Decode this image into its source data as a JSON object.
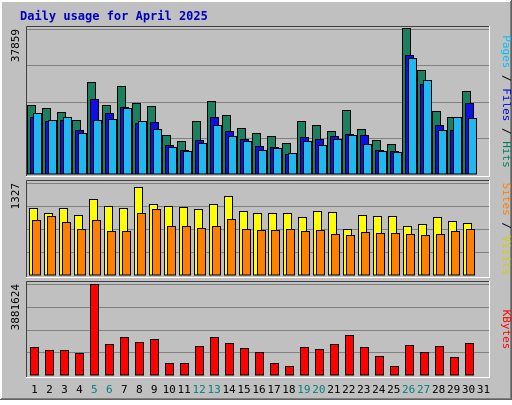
{
  "chart_data": {
    "type": "bar",
    "title": "Daily usage for April 2025",
    "days": [
      "1",
      "2",
      "3",
      "4",
      "5",
      "6",
      "7",
      "8",
      "9",
      "10",
      "11",
      "12",
      "13",
      "14",
      "15",
      "16",
      "17",
      "18",
      "19",
      "20",
      "21",
      "22",
      "23",
      "24",
      "25",
      "26",
      "27",
      "28",
      "29",
      "30",
      "31"
    ],
    "weekend_days": [
      "5",
      "6",
      "12",
      "13",
      "19",
      "20",
      "26",
      "27"
    ],
    "panels": [
      {
        "id": "hits-files-pages",
        "ymax_label": "37859",
        "ymax": 37859,
        "axis_label_parts": [
          {
            "text": "Pages",
            "color": "#00c0ff"
          },
          {
            "text": " / ",
            "color": "#000000"
          },
          {
            "text": "Files",
            "color": "#0000e0"
          },
          {
            "text": " / ",
            "color": "#000000"
          },
          {
            "text": "Hits",
            "color": "#008060"
          }
        ],
        "series": [
          {
            "name": "Hits",
            "color": "#1a8060",
            "values": [
              18100,
              17200,
              16300,
              14100,
              23900,
              18100,
              22900,
              18500,
              17700,
              10200,
              8700,
              13800,
              19000,
              15300,
              11900,
              10700,
              9800,
              8100,
              13900,
              12900,
              11300,
              16600,
              11800,
              8900,
              7900,
              38000,
              27200,
              16400,
              15000,
              21800,
              0
            ]
          },
          {
            "name": "Files",
            "color": "#1010e0",
            "values": [
              15000,
              13800,
              14000,
              11500,
              19500,
              16000,
              17500,
              13200,
              13500,
              7500,
              6200,
              9000,
              15000,
              11200,
              9200,
              7300,
              7000,
              5200,
              9700,
              9100,
              9800,
              10400,
              10200,
              6300,
              6000,
              31000,
              23500,
              12900,
              11400,
              18600,
              0
            ]
          },
          {
            "name": "Pages",
            "color": "#20b8f0",
            "values": [
              15800,
              14000,
              14900,
              10700,
              14000,
              14300,
              17200,
              13900,
              11700,
              7000,
              5900,
              8000,
              12800,
              9900,
              8600,
              6300,
              6900,
              5400,
              8500,
              7700,
              9100,
              10300,
              7800,
              5900,
              5700,
              30300,
              24500,
              11400,
              14800,
              14700,
              0
            ]
          }
        ]
      },
      {
        "id": "visits-sites",
        "ymax_label": "1327",
        "ymax": 1327,
        "axis_label_parts": [
          {
            "text": "Sites",
            "color": "#ff8000"
          },
          {
            "text": " / ",
            "color": "#000000"
          },
          {
            "text": "Visits",
            "color": "#d0d000"
          }
        ],
        "series": [
          {
            "name": "Visits",
            "color": "#ffff00",
            "values": [
              960,
              890,
              970,
              870,
              1090,
              990,
              970,
              1270,
              1020,
              990,
              980,
              950,
              1030,
              1140,
              920,
              890,
              890,
              890,
              830,
              920,
              910,
              670,
              860,
              850,
              850,
              710,
              730,
              830,
              780,
              750,
              0
            ]
          },
          {
            "name": "Sites",
            "color": "#ff8000",
            "values": [
              800,
              850,
              770,
              660,
              800,
              630,
              640,
              890,
              950,
              700,
              700,
              680,
              700,
              810,
              660,
              650,
              650,
              670,
              640,
              650,
              590,
              570,
              620,
              600,
              600,
              590,
              580,
              590,
              630,
              660,
              0
            ]
          }
        ]
      },
      {
        "id": "kbytes",
        "ymax_label": "3881624",
        "ymax": 3881624,
        "axis_label_parts": [
          {
            "text": "KBytes",
            "color": "#ff0000"
          }
        ],
        "series": [
          {
            "name": "KBytes",
            "color": "#ff0000",
            "values": [
              1200000,
              1050000,
              1050000,
              950000,
              3881624,
              1330000,
              1600000,
              1400000,
              1550000,
              500000,
              500000,
              1230000,
              1600000,
              1360000,
              1140000,
              970000,
              500000,
              400000,
              1200000,
              1120000,
              1310000,
              1700000,
              1200000,
              810000,
              400000,
              1300000,
              1000000,
              1230000,
              750000,
              1350000,
              0
            ]
          }
        ]
      }
    ]
  }
}
